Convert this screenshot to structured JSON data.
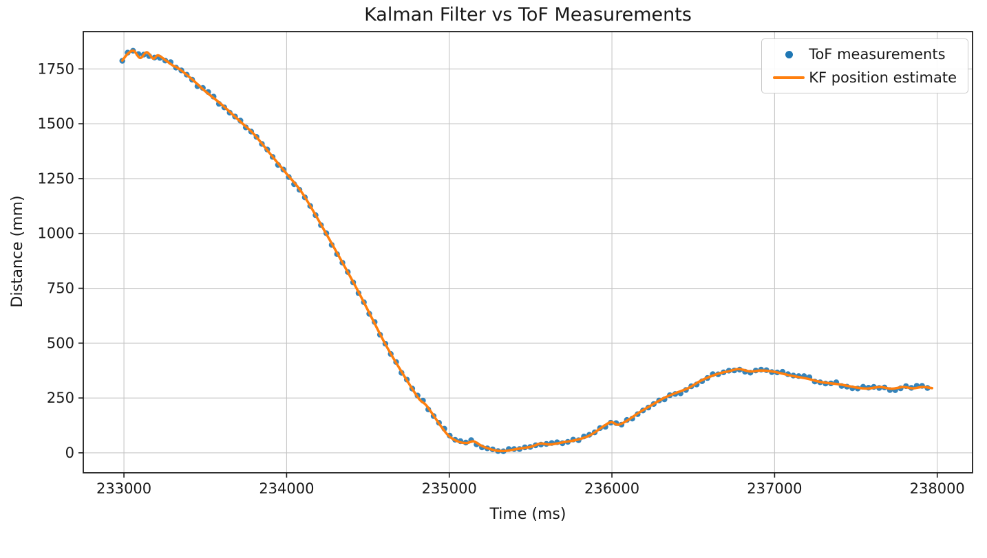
{
  "figure": {
    "background": "#ffffff",
    "text_color": "#191919"
  },
  "chart_data": {
    "type": "scatter",
    "title": "Kalman Filter vs ToF Measurements",
    "xlabel": "Time (ms)",
    "ylabel": "Distance (mm)",
    "xlim": [
      232750,
      238217
    ],
    "ylim": [
      -91,
      1920
    ],
    "x_ticks": [
      233000,
      234000,
      235000,
      236000,
      237000,
      238000
    ],
    "y_ticks": [
      0,
      250,
      500,
      750,
      1000,
      1250,
      1500,
      1750
    ],
    "grid": true,
    "grid_color": "#c6c6c6",
    "spine_color": "#1a1a1a",
    "legend_position": "upper right",
    "series": [
      {
        "name": "ToF measurements",
        "type": "scatter",
        "color": "#1f77b4",
        "marker": "circle",
        "interval_ms": 33,
        "noise_mm": 11,
        "t_start": 232990,
        "t_end": 237968
      },
      {
        "name": "KF position estimate",
        "type": "line",
        "color": "#ff7f0e",
        "keypoints": [
          [
            232990,
            1788
          ],
          [
            233025,
            1820
          ],
          [
            233060,
            1832
          ],
          [
            233100,
            1800
          ],
          [
            233140,
            1826
          ],
          [
            233180,
            1797
          ],
          [
            233210,
            1812
          ],
          [
            233255,
            1790
          ],
          [
            233300,
            1766
          ],
          [
            233340,
            1750
          ],
          [
            233420,
            1702
          ],
          [
            233500,
            1648
          ],
          [
            233600,
            1588
          ],
          [
            233730,
            1500
          ],
          [
            233800,
            1452
          ],
          [
            233900,
            1362
          ],
          [
            234000,
            1272
          ],
          [
            234100,
            1180
          ],
          [
            234250,
            990
          ],
          [
            234430,
            750
          ],
          [
            234600,
            505
          ],
          [
            234700,
            378
          ],
          [
            234810,
            250
          ],
          [
            234860,
            215
          ],
          [
            234950,
            120
          ],
          [
            235000,
            75
          ],
          [
            235060,
            50
          ],
          [
            235110,
            45
          ],
          [
            235150,
            52
          ],
          [
            235210,
            28
          ],
          [
            235290,
            10
          ],
          [
            235350,
            9
          ],
          [
            235420,
            18
          ],
          [
            235500,
            27
          ],
          [
            235560,
            42
          ],
          [
            235620,
            38
          ],
          [
            235700,
            48
          ],
          [
            235790,
            60
          ],
          [
            235870,
            82
          ],
          [
            235950,
            122
          ],
          [
            235995,
            140
          ],
          [
            236040,
            128
          ],
          [
            236100,
            150
          ],
          [
            236170,
            185
          ],
          [
            236250,
            220
          ],
          [
            236320,
            250
          ],
          [
            236400,
            275
          ],
          [
            236470,
            295
          ],
          [
            236550,
            330
          ],
          [
            236650,
            360
          ],
          [
            236720,
            372
          ],
          [
            236780,
            382
          ],
          [
            236850,
            371
          ],
          [
            236920,
            375
          ],
          [
            237000,
            369
          ],
          [
            237100,
            352
          ],
          [
            237200,
            338
          ],
          [
            237290,
            322
          ],
          [
            237400,
            312
          ],
          [
            237500,
            298
          ],
          [
            237570,
            293
          ],
          [
            237650,
            300
          ],
          [
            237720,
            292
          ],
          [
            237790,
            300
          ],
          [
            237850,
            294
          ],
          [
            237910,
            300
          ],
          [
            237968,
            295
          ]
        ]
      }
    ]
  }
}
